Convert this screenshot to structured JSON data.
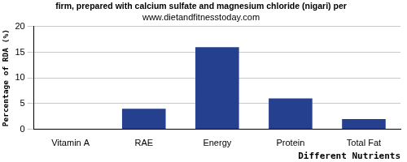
{
  "chart_data": {
    "type": "bar",
    "title": "firm, prepared with calcium sulfate and magnesium chloride (nigari) per",
    "subtitle": "www.dietandfitnesstoday.com",
    "x_label": "Different Nutrients",
    "y_label": "Percentage of RDA (%)",
    "categories": [
      "Vitamin A",
      "RAE",
      "Energy",
      "Protein",
      "Total Fat"
    ],
    "values": [
      0,
      4,
      16,
      6,
      2
    ],
    "color": "#25408f",
    "ylim": [
      0,
      20
    ],
    "yticks": [
      0,
      5,
      10,
      15,
      20
    ],
    "grid": true
  }
}
